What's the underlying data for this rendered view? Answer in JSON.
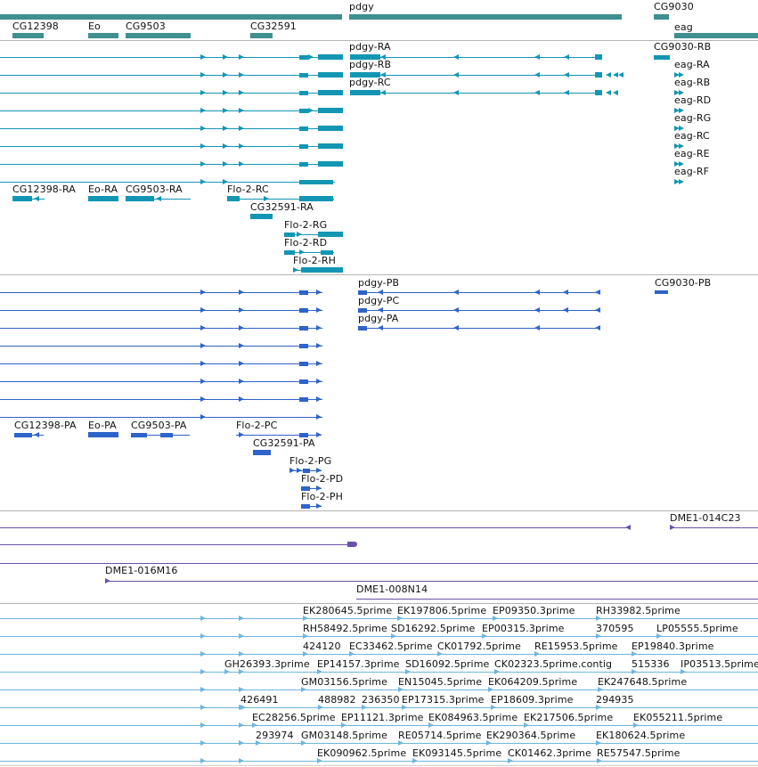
{
  "colors": {
    "gene": "#3f8f8f",
    "track_a": "#1296b4",
    "track_b": "#2e63c9",
    "track_c": "#6a52a8",
    "track_d": "#6fb5dd",
    "separator": "#b4b4b4"
  },
  "genes_track": {
    "labels": [
      "pdgy",
      "CG9030",
      "CG12398",
      "Eo",
      "CG9503",
      "CG32591",
      "eag"
    ]
  },
  "transcripts_a": {
    "labels": [
      "pdgy-RA",
      "CG9030-RB",
      "pdgy-RB",
      "eag-RA",
      "pdgy-RC",
      "eag-RB",
      "eag-RD",
      "eag-RG",
      "eag-RC",
      "eag-RE",
      "eag-RF",
      "CG12398-RA",
      "Eo-RA",
      "CG9503-RA",
      "Flo-2-RC",
      "CG32591-RA",
      "Flo-2-RG",
      "Flo-2-RD",
      "Flo-2-RH"
    ]
  },
  "transcripts_b": {
    "labels": [
      "pdgy-PB",
      "CG9030-PB",
      "pdgy-PC",
      "pdgy-PA",
      "CG12398-PA",
      "Eo-PA",
      "CG9503-PA",
      "Flo-2-PC",
      "CG32591-PA",
      "Flo-2-PG",
      "Flo-2-PD",
      "Flo-2-PH"
    ]
  },
  "clones_track": {
    "labels": [
      "DME1-014C23",
      "DME1-016M16",
      "DME1-008N14"
    ]
  },
  "ests_track": {
    "labels": [
      "EK280645.5prime",
      "EK197806.5prime",
      "EP09350.3prime",
      "RH33982.5prime",
      "RH58492.5prime",
      "SD16292.5prime",
      "EP00315.3prime",
      "370595",
      "LP05555.5prime",
      "424120",
      "EC33462.5prime",
      "CK01792.5prime",
      "RE15953.5prime",
      "EP19840.3prime",
      "GH26393.3prime",
      "EP14157.3prime",
      "SD16092.5prime",
      "CK02323.5prime.contig",
      "515336",
      "IP03513.5prime",
      "GM03156.5prime",
      "EN15045.5prime",
      "EK064209.5prime",
      "EK247648.5prime",
      "426491",
      "488982",
      "236350",
      "EP17315.3prime",
      "EP18609.3prime",
      "294935",
      "EC28256.5prime",
      "EP11121.3prime",
      "EK084963.5prime",
      "EK217506.5prime",
      "EK055211.5prime",
      "293974",
      "GM03148.5prime",
      "RE05714.5prime",
      "EK290364.5prime",
      "EK180624.5prime",
      "EK090962.5prime",
      "EK093145.5prime",
      "CK01462.3prime",
      "RE57547.5prime"
    ]
  }
}
